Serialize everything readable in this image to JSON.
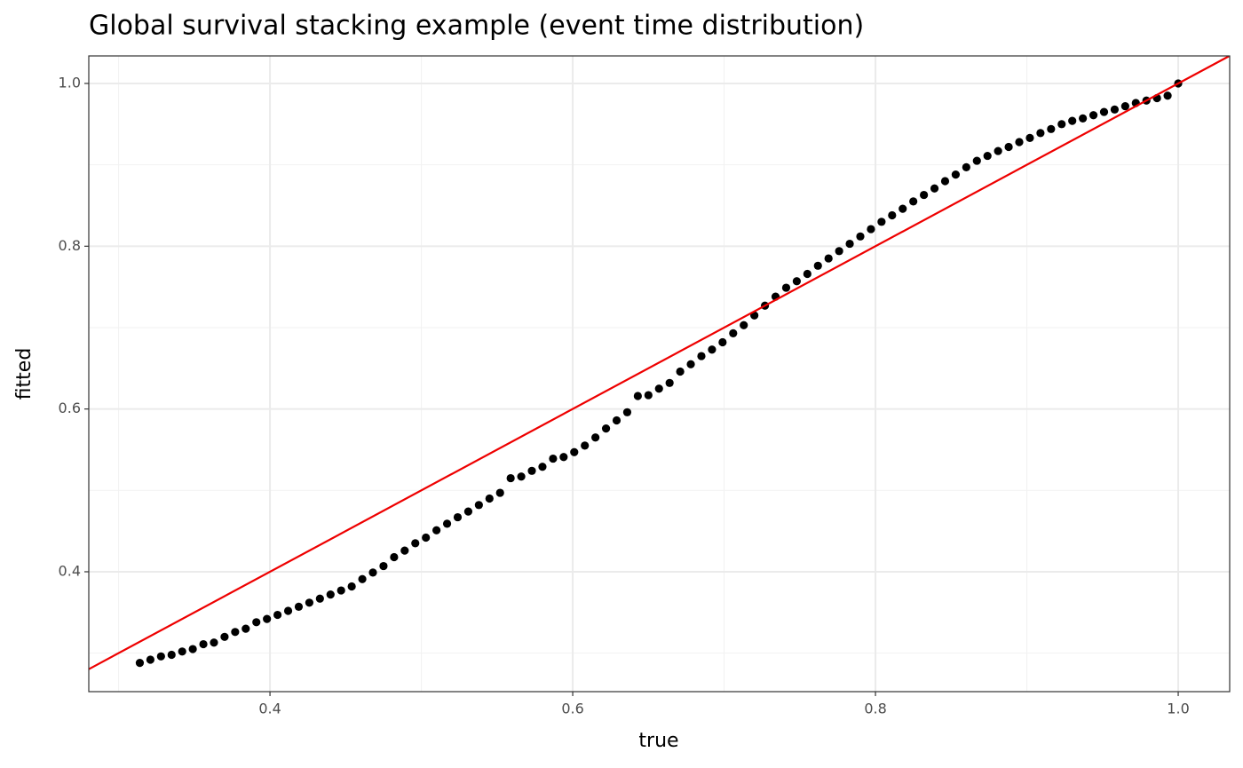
{
  "chart_data": {
    "type": "scatter",
    "title": "Global survival stacking example (event time distribution)",
    "xlabel": "true",
    "ylabel": "fitted",
    "xlim": [
      0.2803,
      1.034
    ],
    "ylim": [
      0.2527,
      1.0338
    ],
    "xticks": [
      0.4,
      0.6,
      0.8,
      {
        "value": 1,
        "label": "1.0"
      }
    ],
    "yticks": [
      0.4,
      0.6,
      0.8,
      {
        "value": 1,
        "label": "1.0"
      }
    ],
    "xminorticks": [
      0.3,
      0.5,
      0.7,
      0.9
    ],
    "yminorticks": [
      0.3,
      0.5,
      0.7,
      0.9
    ],
    "grid": true,
    "reference_line": {
      "slope": 1,
      "intercept": 0,
      "color": "#ee0000"
    },
    "x": [
      0.314,
      0.321,
      0.328,
      0.335,
      0.342,
      0.349,
      0.356,
      0.363,
      0.37,
      0.377,
      0.384,
      0.391,
      0.398,
      0.405,
      0.412,
      0.419,
      0.426,
      0.433,
      0.44,
      0.447,
      0.454,
      0.461,
      0.468,
      0.475,
      0.482,
      0.489,
      0.496,
      0.503,
      0.51,
      0.517,
      0.524,
      0.531,
      0.538,
      0.545,
      0.552,
      0.559,
      0.566,
      0.573,
      0.58,
      0.587,
      0.594,
      0.601,
      0.608,
      0.615,
      0.622,
      0.629,
      0.636,
      0.643,
      0.65,
      0.657,
      0.664,
      0.671,
      0.678,
      0.685,
      0.692,
      0.699,
      0.706,
      0.713,
      0.72,
      0.727,
      0.734,
      0.741,
      0.748,
      0.755,
      0.762,
      0.769,
      0.776,
      0.783,
      0.79,
      0.797,
      0.804,
      0.811,
      0.818,
      0.825,
      0.832,
      0.839,
      0.846,
      0.853,
      0.86,
      0.867,
      0.874,
      0.881,
      0.888,
      0.895,
      0.902,
      0.909,
      0.916,
      0.923,
      0.93,
      0.937,
      0.944,
      0.951,
      0.958,
      0.965,
      0.972,
      0.979,
      0.986,
      0.993,
      1.0
    ],
    "series": [
      {
        "color": "#000000",
        "values": [
          0.288,
          0.292,
          0.296,
          0.298,
          0.302,
          0.305,
          0.311,
          0.313,
          0.32,
          0.326,
          0.33,
          0.338,
          0.342,
          0.347,
          0.352,
          0.357,
          0.362,
          0.367,
          0.372,
          0.377,
          0.382,
          0.391,
          0.399,
          0.407,
          0.418,
          0.426,
          0.435,
          0.442,
          0.451,
          0.459,
          0.467,
          0.474,
          0.482,
          0.49,
          0.497,
          0.515,
          0.517,
          0.524,
          0.529,
          0.539,
          0.541,
          0.547,
          0.555,
          0.565,
          0.576,
          0.586,
          0.596,
          0.616,
          0.617,
          0.625,
          0.632,
          0.646,
          0.655,
          0.665,
          0.673,
          0.682,
          0.693,
          0.703,
          0.715,
          0.727,
          0.738,
          0.749,
          0.757,
          0.766,
          0.776,
          0.785,
          0.794,
          0.803,
          0.812,
          0.821,
          0.83,
          0.838,
          0.846,
          0.855,
          0.863,
          0.871,
          0.88,
          0.888,
          0.897,
          0.905,
          0.911,
          0.917,
          0.922,
          0.928,
          0.933,
          0.939,
          0.944,
          0.95,
          0.954,
          0.957,
          0.961,
          0.965,
          0.968,
          0.972,
          0.976,
          0.979,
          0.982,
          0.985,
          1.0
        ]
      }
    ]
  }
}
